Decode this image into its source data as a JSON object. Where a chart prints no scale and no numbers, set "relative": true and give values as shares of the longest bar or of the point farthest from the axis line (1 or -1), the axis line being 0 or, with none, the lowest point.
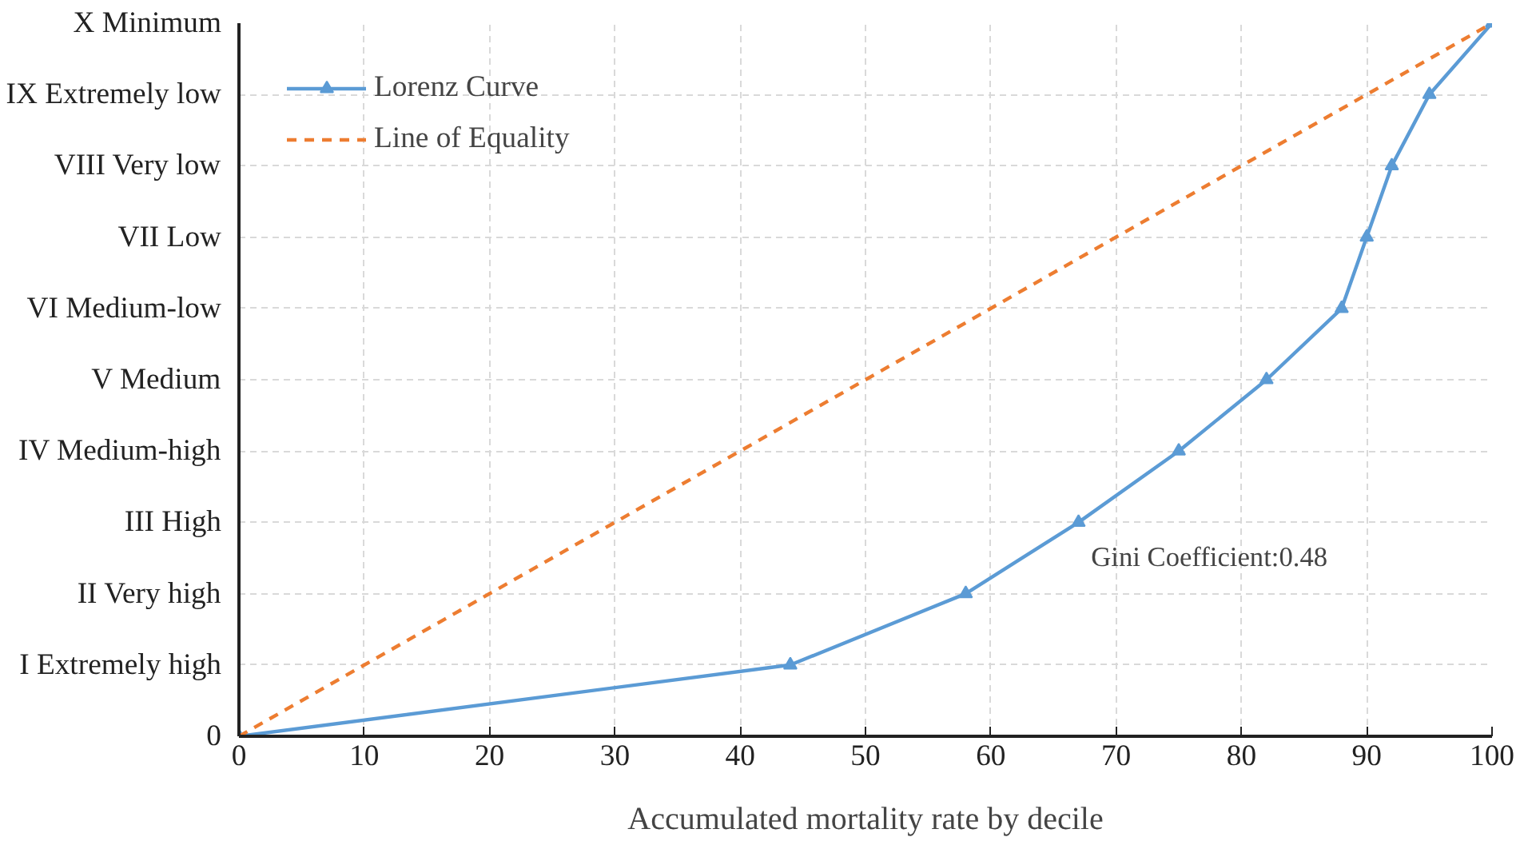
{
  "chart_data": {
    "type": "line",
    "xlabel": "Accumulated mortality rate by decile",
    "xlim": [
      0,
      100
    ],
    "xticks": [
      0,
      10,
      20,
      30,
      40,
      50,
      60,
      70,
      80,
      90,
      100
    ],
    "relative": true,
    "y_categories": [
      "X Minimum",
      "IX Extremely low",
      "VIII Very low",
      "VII Low",
      "VI Medium-low",
      "V Medium",
      "IV Medium-high",
      "III High",
      "II Very high",
      "I Extremely high",
      "0"
    ],
    "grid": true,
    "legend": "top left",
    "series": [
      {
        "name": "Lorenz Curve",
        "color": "#5b9bd5",
        "marker": "triangle",
        "line_style": "solid",
        "x": [
          0,
          44,
          58,
          67,
          75,
          82,
          88,
          90,
          92,
          95,
          100
        ],
        "values": [
          0,
          0.1,
          0.2,
          0.3,
          0.4,
          0.5,
          0.6,
          0.7,
          0.8,
          0.9,
          1
        ]
      },
      {
        "name": "Line of Equality",
        "color": "#ed7d31",
        "marker": "none",
        "line_style": "dashed",
        "x": [
          0,
          100
        ],
        "values": [
          0,
          1
        ]
      }
    ],
    "annotations": [
      "Gini Coefficient:0.48"
    ]
  }
}
